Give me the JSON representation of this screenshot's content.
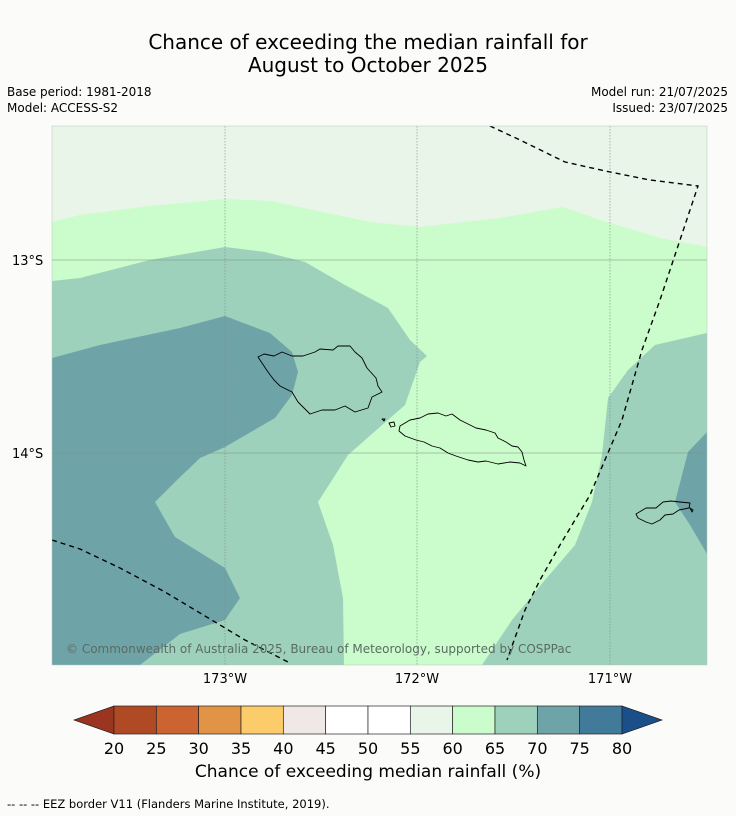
{
  "title": {
    "line1": "Chance of exceeding the median rainfall for",
    "line2": "August to October 2025"
  },
  "meta": {
    "base_period": "Base period: 1981-2018",
    "model": "Model: ACCESS-S2",
    "model_run": "Model run: 21/07/2025",
    "issued": "Issued: 23/07/2025"
  },
  "map": {
    "lat_labels": [
      "13°S",
      "14°S"
    ],
    "lon_labels": [
      "173°W",
      "172°W",
      "171°W"
    ],
    "copyright": "© Commonwealth of Australia 2025, Bureau of Meteorology, supported by COSPPac",
    "category_colors": {
      "55-60": "#e8f5e8",
      "60-65": "#cbfccb",
      "65-70": "#9ed1bc",
      "70-75": "#6ea4a8"
    },
    "land_outline_color": "#000000",
    "eez_color": "#000000"
  },
  "colorbar": {
    "ticks": [
      "20",
      "25",
      "30",
      "35",
      "40",
      "45",
      "50",
      "55",
      "60",
      "65",
      "70",
      "75",
      "80"
    ],
    "colors": [
      "#9c3520",
      "#b04a25",
      "#cc6432",
      "#e29446",
      "#fdcc6a",
      "#efe8e6",
      "#ffffff",
      "#ffffff",
      "#e8f5e8",
      "#cbfccb",
      "#9ed1bc",
      "#6ea4a8",
      "#427a99",
      "#1a4f8a"
    ],
    "label": "Chance of exceeding median rainfall (%)"
  },
  "footnote": "--  --  -- EEZ border V11 (Flanders Marine Institute, 2019)."
}
